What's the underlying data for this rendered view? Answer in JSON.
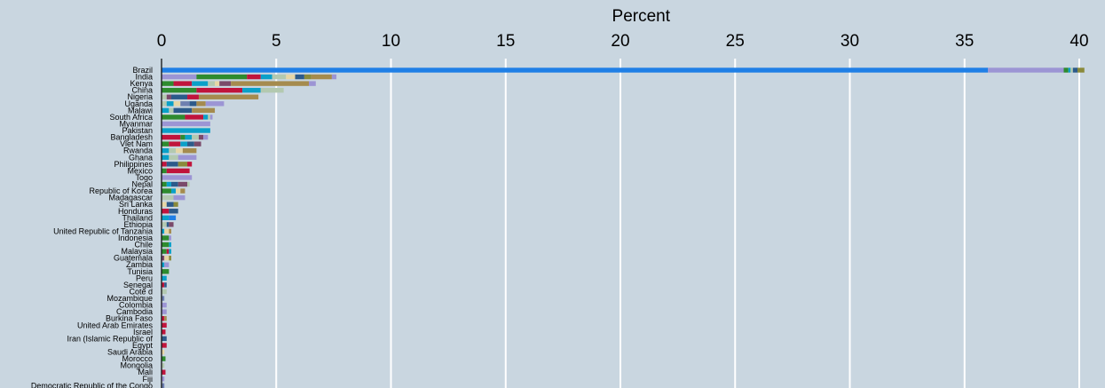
{
  "chart_data": {
    "type": "bar",
    "orientation": "horizontal",
    "stacked": true,
    "title": "",
    "xlabel": "Percent",
    "ylabel": "",
    "xlim": [
      0,
      40.7
    ],
    "xticks": [
      0,
      5,
      10,
      15,
      20,
      25,
      30,
      35,
      40
    ],
    "x_axis_position": "top",
    "grid": true,
    "legend": "none",
    "background": "#c9d6e0",
    "palette": [
      "#1f7fe6",
      "#9c95d4",
      "#2e8b2e",
      "#c0143c",
      "#0aa0c8",
      "#b3c9b0",
      "#2c5a8a",
      "#8a8a3a",
      "#a58b4e",
      "#7a4a6a",
      "#e6d6a6",
      "#6e7fb0"
    ],
    "categories": [
      "Brazil",
      "India",
      "Kenya",
      "China",
      "Nigeria",
      "Uganda",
      "Malawi",
      "South Africa",
      "Myanmar",
      "Pakistan",
      "Bangladesh",
      "Viet Nam",
      "Rwanda",
      "Ghana",
      "Philippines",
      "Mexico",
      "Togo",
      "Nepal",
      "Republic of Korea",
      "Madagascar",
      "Sri Lanka",
      "Honduras",
      "Thailand",
      "Ethiopia",
      "United Republic of Tanzania",
      "Indonesia",
      "Chile",
      "Malaysia",
      "Guatemala",
      "Zambia",
      "Tunisia",
      "Peru",
      "Senegal",
      "Cote d",
      "Mozambique",
      "Colombia",
      "Cambodia",
      "Burkina Faso",
      "United Arab Emirates",
      "Israel",
      "Iran (Islamic Republic of",
      "Egypt",
      "Saudi Arabia",
      "Morocco",
      "Mongolia",
      "Mali",
      "Fiji",
      "Democratic Republic of the Congo"
    ],
    "segments": [
      [
        [
          0,
          36.0
        ],
        [
          1,
          3.3
        ],
        [
          2,
          0.2
        ],
        [
          4,
          0.1
        ],
        [
          5,
          0.1
        ],
        [
          6,
          0.2
        ],
        [
          7,
          0.3
        ]
      ],
      [
        [
          1,
          1.5
        ],
        [
          2,
          2.2
        ],
        [
          3,
          0.6
        ],
        [
          4,
          0.5
        ],
        [
          5,
          0.6
        ],
        [
          10,
          0.4
        ],
        [
          6,
          0.4
        ],
        [
          7,
          0.3
        ],
        [
          8,
          0.9
        ],
        [
          1,
          0.2
        ]
      ],
      [
        [
          2,
          0.5
        ],
        [
          3,
          0.8
        ],
        [
          4,
          0.7
        ],
        [
          5,
          0.3
        ],
        [
          10,
          0.2
        ],
        [
          9,
          0.5
        ],
        [
          8,
          3.4
        ],
        [
          1,
          0.3
        ]
      ],
      [
        [
          2,
          1.5
        ],
        [
          3,
          2.0
        ],
        [
          4,
          0.8
        ],
        [
          5,
          1.0
        ]
      ],
      [
        [
          5,
          0.2
        ],
        [
          9,
          0.2
        ],
        [
          6,
          0.7
        ],
        [
          3,
          0.5
        ],
        [
          8,
          2.6
        ]
      ],
      [
        [
          5,
          0.2
        ],
        [
          4,
          0.3
        ],
        [
          10,
          0.3
        ],
        [
          11,
          0.4
        ],
        [
          6,
          0.3
        ],
        [
          8,
          0.4
        ],
        [
          1,
          0.8
        ]
      ],
      [
        [
          4,
          0.3
        ],
        [
          5,
          0.2
        ],
        [
          6,
          0.8
        ],
        [
          8,
          1.0
        ]
      ],
      [
        [
          2,
          1.0
        ],
        [
          3,
          0.8
        ],
        [
          4,
          0.2
        ],
        [
          5,
          0.1
        ],
        [
          1,
          0.1
        ]
      ],
      [
        [
          1,
          2.1
        ]
      ],
      [
        [
          4,
          2.1
        ]
      ],
      [
        [
          3,
          0.8
        ],
        [
          2,
          0.2
        ],
        [
          4,
          0.3
        ],
        [
          5,
          0.3
        ],
        [
          9,
          0.2
        ],
        [
          1,
          0.2
        ]
      ],
      [
        [
          2,
          0.3
        ],
        [
          3,
          0.5
        ],
        [
          4,
          0.3
        ],
        [
          6,
          0.3
        ],
        [
          9,
          0.3
        ]
      ],
      [
        [
          4,
          0.3
        ],
        [
          5,
          0.3
        ],
        [
          10,
          0.3
        ],
        [
          8,
          0.6
        ]
      ],
      [
        [
          4,
          0.3
        ],
        [
          5,
          0.4
        ],
        [
          1,
          0.8
        ]
      ],
      [
        [
          3,
          0.2
        ],
        [
          6,
          0.5
        ],
        [
          7,
          0.4
        ],
        [
          3,
          0.2
        ]
      ],
      [
        [
          2,
          0.2
        ],
        [
          3,
          1.0
        ]
      ],
      [
        [
          1,
          1.3
        ]
      ],
      [
        [
          2,
          0.2
        ],
        [
          4,
          0.2
        ],
        [
          6,
          0.3
        ],
        [
          9,
          0.4
        ],
        [
          5,
          0.1
        ]
      ],
      [
        [
          2,
          0.4
        ],
        [
          4,
          0.2
        ],
        [
          10,
          0.2
        ],
        [
          8,
          0.2
        ]
      ],
      [
        [
          5,
          0.5
        ],
        [
          1,
          0.5
        ]
      ],
      [
        [
          10,
          0.2
        ],
        [
          6,
          0.3
        ],
        [
          7,
          0.2
        ]
      ],
      [
        [
          3,
          0.3
        ],
        [
          6,
          0.4
        ]
      ],
      [
        [
          4,
          0.3
        ],
        [
          0,
          0.3
        ]
      ],
      [
        [
          5,
          0.2
        ],
        [
          6,
          0.1
        ],
        [
          9,
          0.2
        ]
      ],
      [
        [
          4,
          0.1
        ],
        [
          10,
          0.2
        ],
        [
          8,
          0.1
        ]
      ],
      [
        [
          2,
          0.3
        ],
        [
          1,
          0.1
        ]
      ],
      [
        [
          2,
          0.3
        ],
        [
          4,
          0.1
        ]
      ],
      [
        [
          2,
          0.2
        ],
        [
          3,
          0.1
        ],
        [
          4,
          0.1
        ]
      ],
      [
        [
          9,
          0.1
        ],
        [
          10,
          0.2
        ],
        [
          7,
          0.1
        ]
      ],
      [
        [
          4,
          0.1
        ],
        [
          1,
          0.2
        ]
      ],
      [
        [
          2,
          0.3
        ]
      ],
      [
        [
          4,
          0.2
        ]
      ],
      [
        [
          3,
          0.1
        ],
        [
          6,
          0.1
        ]
      ],
      [
        [
          5,
          0.2
        ]
      ],
      [
        [
          11,
          0.1
        ]
      ],
      [
        [
          1,
          0.2
        ]
      ],
      [
        [
          1,
          0.2
        ]
      ],
      [
        [
          3,
          0.1
        ],
        [
          8,
          0.1
        ]
      ],
      [
        [
          3,
          0.2
        ]
      ],
      [
        [
          3,
          0.15
        ]
      ],
      [
        [
          6,
          0.2
        ]
      ],
      [
        [
          3,
          0.2
        ]
      ],
      [
        [
          10,
          0.1
        ]
      ],
      [
        [
          2,
          0.15
        ]
      ],
      [
        [
          5,
          0.1
        ]
      ],
      [
        [
          3,
          0.15
        ]
      ],
      [
        [
          1,
          0.1
        ]
      ],
      [
        [
          11,
          0.1
        ]
      ]
    ]
  }
}
